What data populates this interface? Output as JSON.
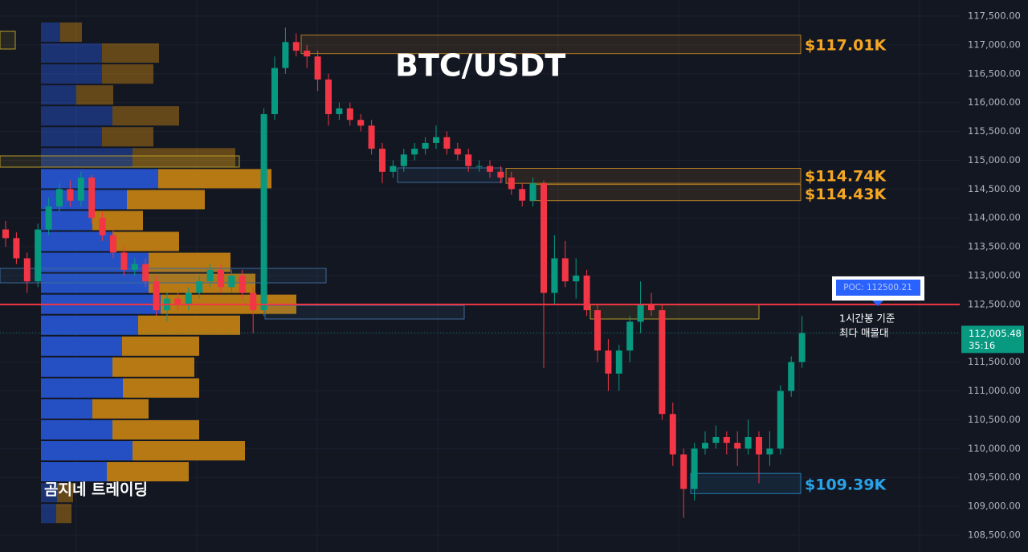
{
  "chart_data": {
    "type": "candlestick",
    "title": "BTC/USDT",
    "watermark": "곰지네 트레이딩",
    "ylim": [
      108207,
      117779
    ],
    "yticks": [
      {
        "value": 108500,
        "label": "108,500.00"
      },
      {
        "value": 109000,
        "label": "109,000.00"
      },
      {
        "value": 109500,
        "label": "109,500.00"
      },
      {
        "value": 110000,
        "label": "110,000.00"
      },
      {
        "value": 110500,
        "label": "110,500.00"
      },
      {
        "value": 111000,
        "label": "111,000.00"
      },
      {
        "value": 111500,
        "label": "111,500.00"
      },
      {
        "value": 112000,
        "label": "112,000.00"
      },
      {
        "value": 112500,
        "label": "112,500.00"
      },
      {
        "value": 113000,
        "label": "113,000.00"
      },
      {
        "value": 113500,
        "label": "113,500.00"
      },
      {
        "value": 114000,
        "label": "114,000.00"
      },
      {
        "value": 114500,
        "label": "114,500.00"
      },
      {
        "value": 115000,
        "label": "115,000.00"
      },
      {
        "value": 115500,
        "label": "115,500.00"
      },
      {
        "value": 116000,
        "label": "116,000.00"
      },
      {
        "value": 116500,
        "label": "116,500.00"
      },
      {
        "value": 117000,
        "label": "117,000.00"
      },
      {
        "value": 117500,
        "label": "117,500.00"
      }
    ],
    "up_color": "#089981",
    "down_color": "#f23645",
    "ohlc": [
      [
        113800,
        113950,
        113500,
        113650
      ],
      [
        113650,
        113750,
        113200,
        113300
      ],
      [
        113300,
        113400,
        112700,
        112900
      ],
      [
        112900,
        113900,
        112800,
        113800
      ],
      [
        113800,
        114350,
        113700,
        114200
      ],
      [
        114200,
        114600,
        114100,
        114500
      ],
      [
        114500,
        114650,
        114200,
        114300
      ],
      [
        114300,
        114800,
        114200,
        114700
      ],
      [
        114700,
        114750,
        113900,
        114000
      ],
      [
        114000,
        114100,
        113600,
        113700
      ],
      [
        113700,
        113800,
        113300,
        113400
      ],
      [
        113400,
        113500,
        113000,
        113100
      ],
      [
        113100,
        113300,
        113000,
        113200
      ],
      [
        113200,
        113300,
        112800,
        112900
      ],
      [
        112900,
        113000,
        112300,
        112400
      ],
      [
        112400,
        112700,
        112200,
        112600
      ],
      [
        112600,
        112700,
        112400,
        112500
      ],
      [
        112500,
        112800,
        112400,
        112700
      ],
      [
        112700,
        113000,
        112600,
        112900
      ],
      [
        112900,
        113200,
        112800,
        113100
      ],
      [
        113100,
        113200,
        112700,
        112800
      ],
      [
        112800,
        113100,
        112700,
        113000
      ],
      [
        113000,
        113100,
        112600,
        112700
      ],
      [
        112700,
        112800,
        112000,
        112400
      ],
      [
        112400,
        115900,
        112300,
        115800
      ],
      [
        115800,
        116800,
        115700,
        116600
      ],
      [
        116600,
        117300,
        116500,
        117050
      ],
      [
        117050,
        117200,
        116800,
        116900
      ],
      [
        116900,
        117000,
        116600,
        116800
      ],
      [
        116800,
        116900,
        116200,
        116400
      ],
      [
        116400,
        116500,
        115600,
        115800
      ],
      [
        115800,
        116000,
        115700,
        115900
      ],
      [
        115900,
        116000,
        115600,
        115700
      ],
      [
        115700,
        115800,
        115500,
        115600
      ],
      [
        115600,
        115700,
        115100,
        115200
      ],
      [
        115200,
        115300,
        114600,
        114800
      ],
      [
        114800,
        115000,
        114700,
        114900
      ],
      [
        114900,
        115200,
        114800,
        115100
      ],
      [
        115100,
        115300,
        115000,
        115200
      ],
      [
        115200,
        115400,
        115100,
        115300
      ],
      [
        115300,
        115600,
        115200,
        115400
      ],
      [
        115400,
        115500,
        115100,
        115200
      ],
      [
        115200,
        115300,
        115000,
        115100
      ],
      [
        115100,
        115200,
        114800,
        114900
      ],
      [
        114900,
        115000,
        114800,
        114900
      ],
      [
        114900,
        115000,
        114700,
        114800
      ],
      [
        114800,
        114900,
        114600,
        114700
      ],
      [
        114700,
        114800,
        114400,
        114500
      ],
      [
        114500,
        114600,
        114200,
        114300
      ],
      [
        114300,
        114700,
        114200,
        114600
      ],
      [
        114600,
        114650,
        111400,
        112700
      ],
      [
        112700,
        113700,
        112500,
        113300
      ],
      [
        113300,
        113600,
        112800,
        112900
      ],
      [
        112900,
        113300,
        112600,
        113000
      ],
      [
        113000,
        113100,
        112300,
        112400
      ],
      [
        112400,
        112500,
        111500,
        111700
      ],
      [
        111700,
        111900,
        111000,
        111300
      ],
      [
        111300,
        111800,
        111000,
        111700
      ],
      [
        111700,
        112300,
        111500,
        112200
      ],
      [
        112200,
        112900,
        112000,
        112500
      ],
      [
        112500,
        112700,
        112300,
        112400
      ],
      [
        112400,
        112500,
        110500,
        110600
      ],
      [
        110600,
        110800,
        109700,
        109900
      ],
      [
        109900,
        110000,
        108800,
        109300
      ],
      [
        109300,
        110100,
        109100,
        110000
      ],
      [
        110000,
        110300,
        109900,
        110100
      ],
      [
        110100,
        110400,
        110000,
        110200
      ],
      [
        110200,
        110300,
        109900,
        110100
      ],
      [
        110100,
        110300,
        109700,
        110000
      ],
      [
        110000,
        110500,
        109900,
        110200
      ],
      [
        110200,
        110300,
        109400,
        109900
      ],
      [
        109900,
        110300,
        109700,
        110000
      ],
      [
        110000,
        111100,
        109900,
        111000
      ],
      [
        111000,
        111600,
        110900,
        111500
      ],
      [
        111500,
        112300,
        111400,
        112005
      ]
    ],
    "volume_profile": {
      "buy_color": "#2757d6",
      "sell_color": "#c98412",
      "buy": [
        24,
        76,
        76,
        44,
        89,
        76,
        114,
        146,
        107,
        64,
        89,
        134,
        134,
        149,
        121,
        101,
        89,
        102,
        64,
        89,
        114,
        82,
        20,
        19
      ],
      "sell": [
        27,
        71,
        64,
        46,
        83,
        64,
        128,
        141,
        97,
        63,
        83,
        102,
        133,
        169,
        127,
        96,
        102,
        95,
        70,
        108,
        140,
        102,
        20,
        19
      ]
    },
    "levels": [
      {
        "label": "$117.01K",
        "value": 117010,
        "color": "#f5a623"
      },
      {
        "label": "$114.74K",
        "value": 114740,
        "color": "#f5a623"
      },
      {
        "label": "$114.43K",
        "value": 114430,
        "color": "#f5a623"
      },
      {
        "label": "$109.39K",
        "value": 109390,
        "color": "#29a3e8"
      }
    ],
    "poc": {
      "label": "POC: 112500.21",
      "value": 112500.21,
      "color": "#f23645",
      "note": [
        "1시간봉 기준",
        "최다 매물대"
      ]
    },
    "last_price": {
      "value": 112005.48,
      "label": "112,005.48",
      "countdown": "35:16"
    }
  }
}
